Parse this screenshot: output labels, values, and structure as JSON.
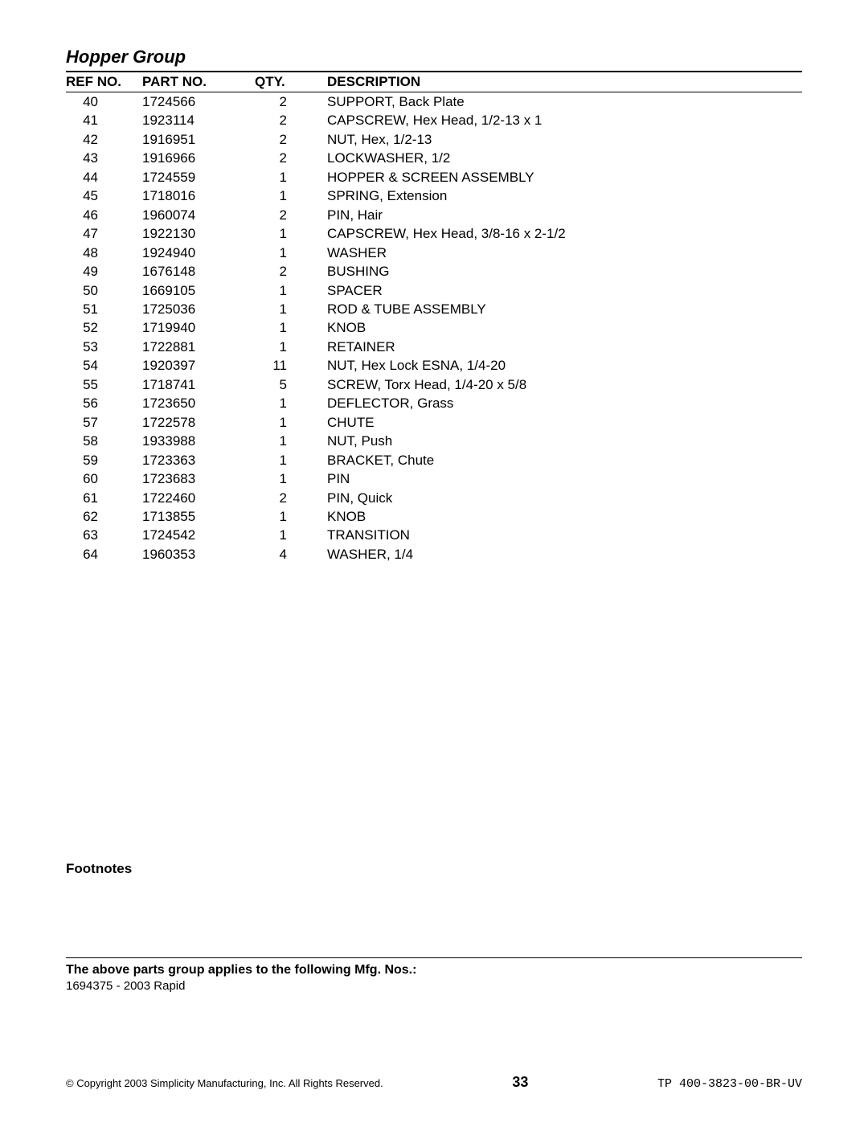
{
  "title": "Hopper Group",
  "columns": {
    "ref": "REF NO.",
    "part": "PART NO.",
    "qty": "QTY.",
    "desc": "DESCRIPTION"
  },
  "rows": [
    {
      "ref": "40",
      "part": "1724566",
      "qty": "2",
      "desc": "SUPPORT, Back Plate"
    },
    {
      "ref": "41",
      "part": "1923114",
      "qty": "2",
      "desc": "CAPSCREW, Hex Head, 1/2-13 x 1"
    },
    {
      "ref": "42",
      "part": "1916951",
      "qty": "2",
      "desc": "NUT, Hex, 1/2-13"
    },
    {
      "ref": "43",
      "part": "1916966",
      "qty": "2",
      "desc": "LOCKWASHER, 1/2"
    },
    {
      "ref": "44",
      "part": "1724559",
      "qty": "1",
      "desc": "HOPPER & SCREEN ASSEMBLY"
    },
    {
      "ref": "45",
      "part": "1718016",
      "qty": "1",
      "desc": "SPRING, Extension"
    },
    {
      "ref": "46",
      "part": "1960074",
      "qty": "2",
      "desc": "PIN, Hair"
    },
    {
      "ref": "47",
      "part": "1922130",
      "qty": "1",
      "desc": "CAPSCREW, Hex Head, 3/8-16 x 2-1/2"
    },
    {
      "ref": "48",
      "part": "1924940",
      "qty": "1",
      "desc": "WASHER"
    },
    {
      "ref": "49",
      "part": "1676148",
      "qty": "2",
      "desc": "BUSHING"
    },
    {
      "ref": "50",
      "part": "1669105",
      "qty": "1",
      "desc": "SPACER"
    },
    {
      "ref": "51",
      "part": "1725036",
      "qty": "1",
      "desc": "ROD & TUBE ASSEMBLY"
    },
    {
      "ref": "52",
      "part": "1719940",
      "qty": "1",
      "desc": "KNOB"
    },
    {
      "ref": "53",
      "part": "1722881",
      "qty": "1",
      "desc": "RETAINER"
    },
    {
      "ref": "54",
      "part": "1920397",
      "qty": "11",
      "desc": "NUT, Hex Lock ESNA, 1/4-20"
    },
    {
      "ref": "55",
      "part": "1718741",
      "qty": "5",
      "desc": "SCREW, Torx Head, 1/4-20 x 5/8"
    },
    {
      "ref": "56",
      "part": "1723650",
      "qty": "1",
      "desc": "DEFLECTOR, Grass"
    },
    {
      "ref": "57",
      "part": "1722578",
      "qty": "1",
      "desc": "CHUTE"
    },
    {
      "ref": "58",
      "part": "1933988",
      "qty": "1",
      "desc": "NUT, Push"
    },
    {
      "ref": "59",
      "part": "1723363",
      "qty": "1",
      "desc": "BRACKET, Chute"
    },
    {
      "ref": "60",
      "part": "1723683",
      "qty": "1",
      "desc": "PIN"
    },
    {
      "ref": "61",
      "part": "1722460",
      "qty": "2",
      "desc": "PIN, Quick"
    },
    {
      "ref": "62",
      "part": "1713855",
      "qty": "1",
      "desc": "KNOB"
    },
    {
      "ref": "63",
      "part": "1724542",
      "qty": "1",
      "desc": "TRANSITION"
    },
    {
      "ref": "64",
      "part": "1960353",
      "qty": "4",
      "desc": "WASHER, 1/4"
    }
  ],
  "footnotes_label": "Footnotes",
  "applies_label": "The above parts group applies to the following Mfg. Nos.:",
  "mfg_line": "1694375 - 2003 Rapid",
  "footer": {
    "copyright": "© Copyright 2003 Simplicity Manufacturing, Inc. All Rights Reserved.",
    "page": "33",
    "docid": "TP 400-3823-00-BR-UV"
  }
}
